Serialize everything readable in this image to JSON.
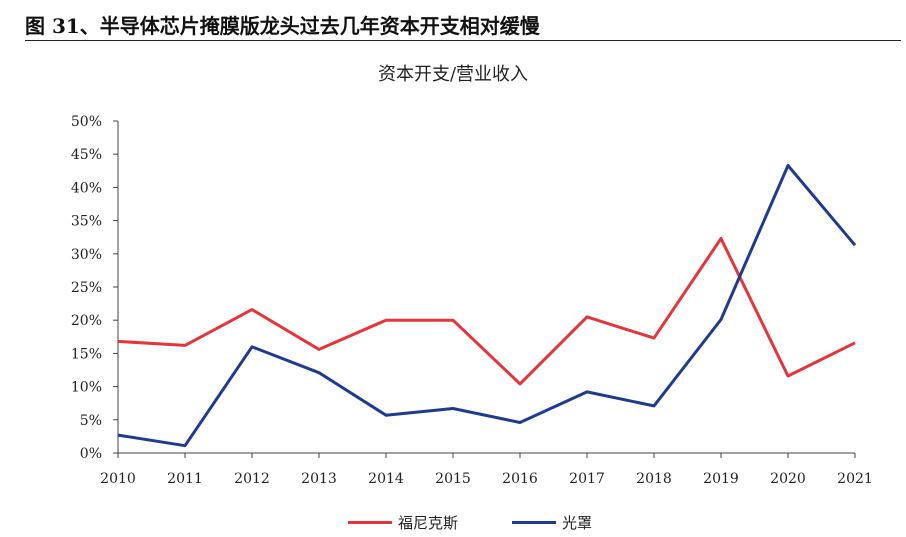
{
  "figure_title": "图 31、半导体芯片掩膜版龙头过去几年资本开支相对缓慢",
  "chart_data": {
    "type": "line",
    "title": "资本开支/营业收入",
    "xlabel": "",
    "ylabel": "",
    "x": [
      "2010",
      "2011",
      "2012",
      "2013",
      "2014",
      "2015",
      "2016",
      "2017",
      "2018",
      "2019",
      "2020",
      "2021"
    ],
    "y_ticks": [
      "0%",
      "5%",
      "10%",
      "15%",
      "20%",
      "25%",
      "30%",
      "35%",
      "40%",
      "45%",
      "50%"
    ],
    "ylim": [
      0,
      0.5
    ],
    "grid": false,
    "legend_position": "bottom",
    "series": [
      {
        "name": "福尼克斯",
        "color": "#e5343a",
        "values": [
          0.168,
          0.162,
          0.216,
          0.156,
          0.2,
          0.2,
          0.104,
          0.205,
          0.173,
          0.323,
          0.116,
          0.166
        ]
      },
      {
        "name": "光罩",
        "color": "#1f3b8f",
        "values": [
          0.027,
          0.011,
          0.16,
          0.121,
          0.057,
          0.067,
          0.046,
          0.092,
          0.071,
          0.201,
          0.433,
          0.313
        ]
      }
    ]
  }
}
